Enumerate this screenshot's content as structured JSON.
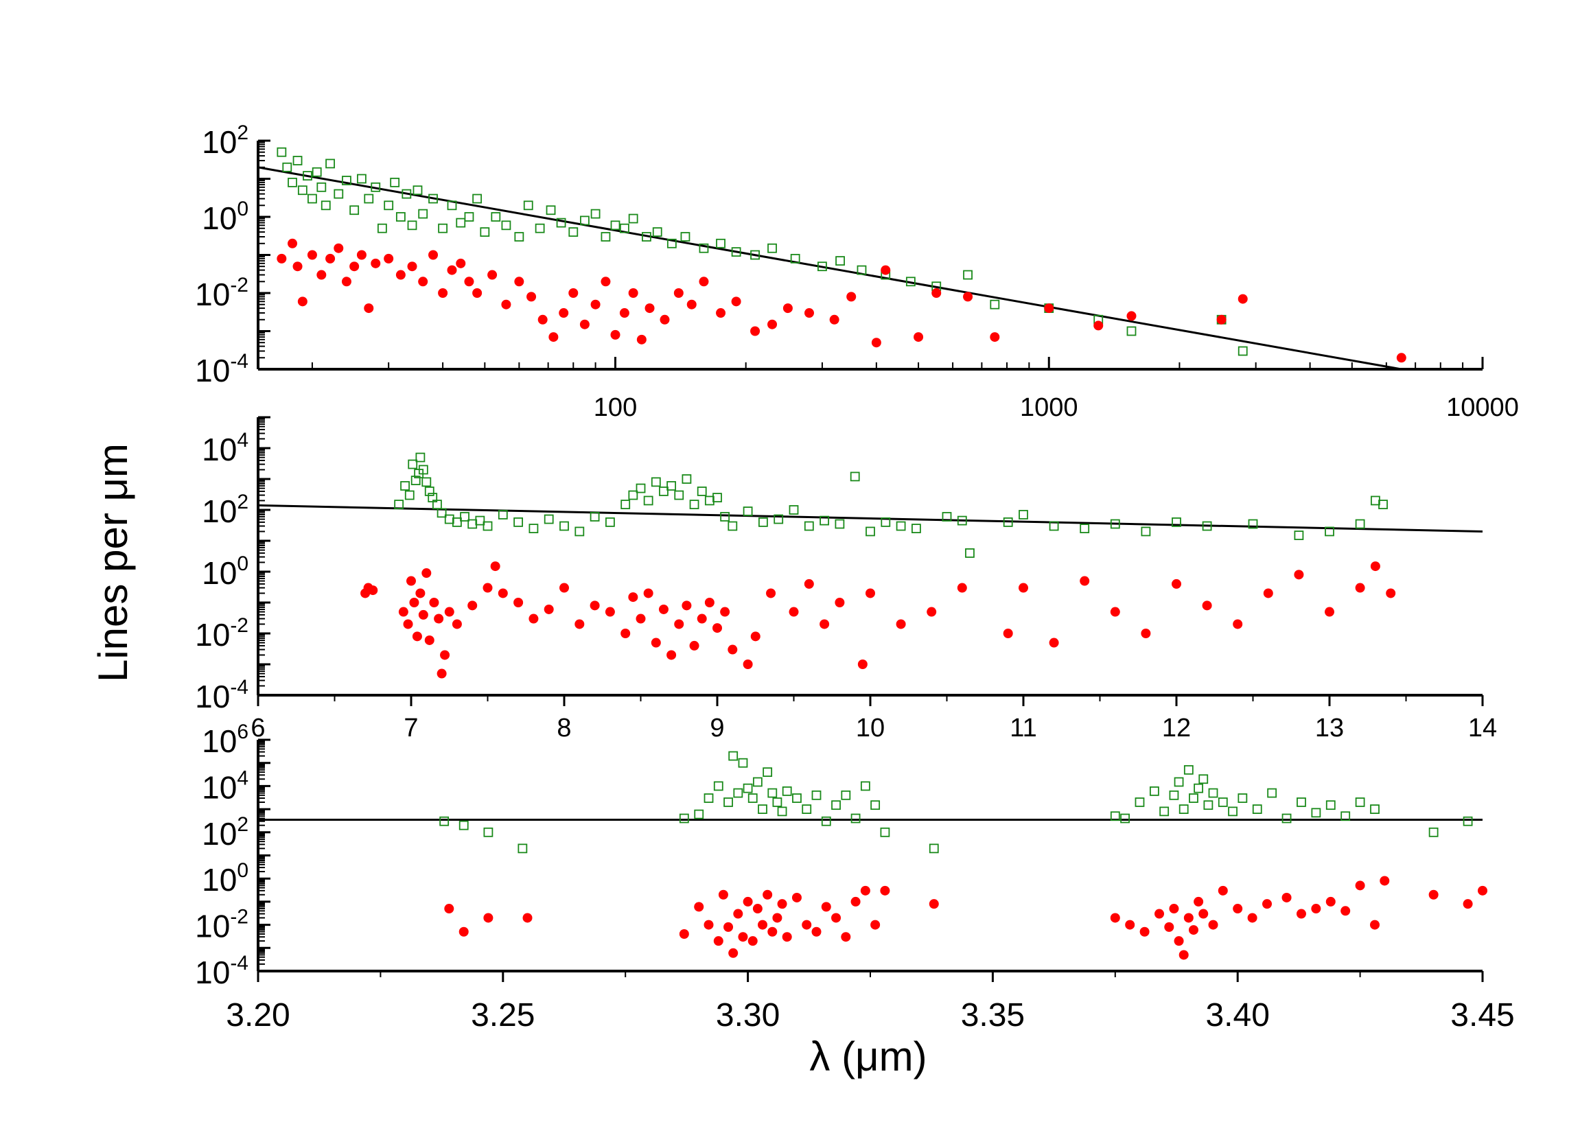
{
  "colors": {
    "green_marker": "#1a8a1a",
    "red_marker": "#ff0000",
    "axis": "#000000",
    "fit_line": "#000000"
  },
  "labels": {
    "ylabel": "Lines per μm",
    "xlabel": "λ (μm)"
  },
  "chart_data": [
    {
      "type": "scatter",
      "name": "top-panel",
      "xscale": "log",
      "yscale": "log",
      "xlim": [
        15,
        10000
      ],
      "ylim": [
        0.0001,
        100
      ],
      "x_tick_labels": [
        "100",
        "1000",
        "10000"
      ],
      "x_tick_values": [
        100,
        1000,
        10000
      ],
      "y_tick_labels": [
        {
          "base": "10",
          "exp": "-4",
          "value": 0.0001
        },
        {
          "base": "10",
          "exp": "-2",
          "value": 0.01
        },
        {
          "base": "10",
          "exp": "0",
          "value": 1
        },
        {
          "base": "10",
          "exp": "2",
          "value": 100
        }
      ],
      "fit_line": {
        "x": [
          15,
          6500
        ],
        "y": [
          20,
          0.0001
        ]
      },
      "series": [
        {
          "name": "open squares (green)",
          "marker": "square-open",
          "x": [
            17,
            17.5,
            18,
            18.5,
            19,
            19.5,
            20,
            20.5,
            21,
            21.5,
            22,
            23,
            24,
            25,
            26,
            27,
            28,
            29,
            30,
            31,
            32,
            33,
            34,
            35,
            36,
            38,
            40,
            42,
            44,
            46,
            48,
            50,
            53,
            56,
            60,
            63,
            67,
            71,
            75,
            80,
            85,
            90,
            95,
            100,
            105,
            110,
            118,
            125,
            135,
            145,
            160,
            175,
            190,
            210,
            230,
            260,
            300,
            330,
            370,
            420,
            480,
            550,
            650,
            750,
            1000,
            1300,
            1550,
            2500,
            2800
          ],
          "y": [
            50,
            20,
            8,
            30,
            5,
            12,
            3,
            15,
            6,
            2,
            25,
            4,
            9,
            1.5,
            10,
            3,
            6,
            0.5,
            2,
            8,
            1,
            4,
            0.6,
            5,
            1.2,
            3,
            0.5,
            2,
            0.7,
            1,
            3,
            0.4,
            1,
            0.6,
            0.3,
            2,
            0.5,
            1.5,
            0.7,
            0.4,
            0.8,
            1.2,
            0.3,
            0.6,
            0.5,
            0.9,
            0.3,
            0.4,
            0.2,
            0.3,
            0.15,
            0.2,
            0.12,
            0.1,
            0.15,
            0.08,
            0.05,
            0.07,
            0.04,
            0.03,
            0.02,
            0.015,
            0.03,
            0.005,
            0.004,
            0.002,
            0.001,
            0.002,
            0.0003
          ]
        },
        {
          "name": "filled circles (red)",
          "marker": "circle-filled",
          "x": [
            17,
            18,
            18.5,
            19,
            20,
            21,
            22,
            23,
            24,
            25,
            26,
            27,
            28,
            30,
            32,
            34,
            36,
            38,
            40,
            42,
            44,
            46,
            48,
            52,
            56,
            60,
            64,
            68,
            72,
            76,
            80,
            85,
            90,
            95,
            100,
            105,
            110,
            115,
            120,
            130,
            140,
            150,
            160,
            175,
            190,
            210,
            230,
            250,
            280,
            320,
            350,
            400,
            420,
            500,
            550,
            650,
            750,
            1000,
            1300,
            1550,
            2500,
            2800,
            6500
          ],
          "y": [
            0.08,
            0.2,
            0.05,
            0.006,
            0.1,
            0.03,
            0.08,
            0.15,
            0.02,
            0.05,
            0.1,
            0.004,
            0.06,
            0.08,
            0.03,
            0.05,
            0.02,
            0.1,
            0.01,
            0.04,
            0.06,
            0.02,
            0.01,
            0.03,
            0.005,
            0.02,
            0.008,
            0.002,
            0.0007,
            0.003,
            0.01,
            0.0015,
            0.005,
            0.02,
            0.0008,
            0.003,
            0.01,
            0.0006,
            0.004,
            0.002,
            0.01,
            0.005,
            0.02,
            0.003,
            0.006,
            0.001,
            0.0015,
            0.004,
            0.003,
            0.002,
            0.008,
            0.0005,
            0.04,
            0.0007,
            0.01,
            0.008,
            0.0007,
            0.004,
            0.0014,
            0.0025,
            0.002,
            0.007,
            0.0002
          ]
        }
      ]
    },
    {
      "type": "scatter",
      "name": "middle-panel",
      "xscale": "linear",
      "yscale": "log",
      "xlim": [
        6,
        14
      ],
      "ylim": [
        0.0001,
        100000
      ],
      "x_tick_labels": [
        "6",
        "7",
        "8",
        "9",
        "10",
        "11",
        "12",
        "13",
        "14"
      ],
      "x_tick_values": [
        6,
        7,
        8,
        9,
        10,
        11,
        12,
        13,
        14
      ],
      "y_tick_labels": [
        {
          "base": "10",
          "exp": "-4",
          "value": 0.0001
        },
        {
          "base": "10",
          "exp": "-2",
          "value": 0.01
        },
        {
          "base": "10",
          "exp": "0",
          "value": 1
        },
        {
          "base": "10",
          "exp": "2",
          "value": 100
        },
        {
          "base": "10",
          "exp": "4",
          "value": 10000
        }
      ],
      "fit_line": {
        "x": [
          6,
          14
        ],
        "y": [
          140,
          20
        ]
      },
      "series": [
        {
          "name": "open squares (green)",
          "marker": "square-open",
          "x": [
            6.92,
            6.96,
            6.99,
            7.01,
            7.03,
            7.05,
            7.06,
            7.08,
            7.1,
            7.12,
            7.14,
            7.17,
            7.2,
            7.25,
            7.3,
            7.35,
            7.4,
            7.45,
            7.5,
            7.6,
            7.7,
            7.8,
            7.9,
            8.0,
            8.1,
            8.2,
            8.3,
            8.4,
            8.45,
            8.5,
            8.55,
            8.6,
            8.65,
            8.7,
            8.75,
            8.8,
            8.85,
            8.9,
            8.95,
            9.0,
            9.05,
            9.1,
            9.2,
            9.3,
            9.4,
            9.5,
            9.6,
            9.7,
            9.8,
            9.9,
            10.0,
            10.1,
            10.2,
            10.3,
            10.5,
            10.6,
            10.65,
            10.9,
            11.0,
            11.2,
            11.4,
            11.6,
            11.8,
            12.0,
            12.2,
            12.5,
            12.8,
            13.0,
            13.2,
            13.3,
            13.35
          ],
          "y": [
            150,
            600,
            300,
            3000,
            900,
            1500,
            5000,
            2000,
            800,
            400,
            250,
            150,
            80,
            50,
            40,
            60,
            35,
            45,
            30,
            70,
            40,
            25,
            50,
            30,
            20,
            60,
            40,
            150,
            300,
            500,
            200,
            800,
            400,
            600,
            300,
            1000,
            150,
            400,
            200,
            250,
            60,
            30,
            90,
            40,
            50,
            100,
            30,
            45,
            35,
            1200,
            20,
            40,
            30,
            25,
            60,
            45,
            4,
            40,
            70,
            30,
            25,
            35,
            20,
            40,
            30,
            35,
            15,
            20,
            35,
            200,
            150
          ]
        },
        {
          "name": "filled circles (red)",
          "marker": "circle-filled",
          "x": [
            6.7,
            6.72,
            6.75,
            6.95,
            6.98,
            7.0,
            7.02,
            7.04,
            7.06,
            7.08,
            7.1,
            7.12,
            7.15,
            7.18,
            7.2,
            7.22,
            7.25,
            7.3,
            7.4,
            7.5,
            7.55,
            7.6,
            7.7,
            7.8,
            7.9,
            8.0,
            8.1,
            8.2,
            8.3,
            8.4,
            8.45,
            8.5,
            8.55,
            8.6,
            8.65,
            8.7,
            8.75,
            8.8,
            8.85,
            8.9,
            8.95,
            9.0,
            9.05,
            9.1,
            9.2,
            9.25,
            9.35,
            9.5,
            9.6,
            9.7,
            9.8,
            9.95,
            10.0,
            10.2,
            10.4,
            10.6,
            10.9,
            11.0,
            11.2,
            11.4,
            11.6,
            11.8,
            12.0,
            12.2,
            12.4,
            12.6,
            12.8,
            13.0,
            13.2,
            13.3,
            13.4
          ],
          "y": [
            0.2,
            0.3,
            0.25,
            0.05,
            0.02,
            0.5,
            0.1,
            0.008,
            0.2,
            0.04,
            0.9,
            0.006,
            0.1,
            0.03,
            0.0005,
            0.002,
            0.05,
            0.02,
            0.08,
            0.3,
            1.5,
            0.2,
            0.1,
            0.03,
            0.06,
            0.3,
            0.02,
            0.08,
            0.05,
            0.01,
            0.15,
            0.03,
            0.2,
            0.005,
            0.06,
            0.002,
            0.02,
            0.08,
            0.004,
            0.03,
            0.1,
            0.015,
            0.05,
            0.003,
            0.001,
            0.008,
            0.2,
            0.05,
            0.4,
            0.02,
            0.1,
            0.001,
            0.2,
            0.02,
            0.05,
            0.3,
            0.01,
            0.3,
            0.005,
            0.5,
            0.05,
            0.01,
            0.4,
            0.08,
            0.02,
            0.2,
            0.8,
            0.05,
            0.3,
            1.5,
            0.2
          ]
        }
      ]
    },
    {
      "type": "scatter",
      "name": "bottom-panel",
      "xscale": "linear",
      "yscale": "log",
      "xlim": [
        3.2,
        3.45
      ],
      "ylim": [
        0.0001,
        1000000
      ],
      "x_tick_labels": [
        "3.20",
        "3.25",
        "3.30",
        "3.35",
        "3.40",
        "3.45"
      ],
      "x_tick_values": [
        3.2,
        3.25,
        3.3,
        3.35,
        3.4,
        3.45
      ],
      "y_tick_labels": [
        {
          "base": "10",
          "exp": "-4",
          "value": 0.0001
        },
        {
          "base": "10",
          "exp": "-2",
          "value": 0.01
        },
        {
          "base": "10",
          "exp": "0",
          "value": 1
        },
        {
          "base": "10",
          "exp": "2",
          "value": 100
        },
        {
          "base": "10",
          "exp": "4",
          "value": 10000
        },
        {
          "base": "10",
          "exp": "6",
          "value": 1000000
        }
      ],
      "fit_line": {
        "x": [
          3.2,
          3.45
        ],
        "y": [
          350,
          350
        ]
      },
      "series": [
        {
          "name": "open squares (green)",
          "marker": "square-open",
          "x": [
            3.238,
            3.242,
            3.247,
            3.254,
            3.287,
            3.29,
            3.292,
            3.294,
            3.296,
            3.297,
            3.298,
            3.299,
            3.3,
            3.301,
            3.302,
            3.303,
            3.304,
            3.305,
            3.306,
            3.307,
            3.308,
            3.31,
            3.312,
            3.314,
            3.316,
            3.318,
            3.32,
            3.322,
            3.324,
            3.326,
            3.328,
            3.338,
            3.375,
            3.377,
            3.38,
            3.383,
            3.385,
            3.387,
            3.388,
            3.389,
            3.39,
            3.391,
            3.392,
            3.393,
            3.394,
            3.395,
            3.397,
            3.399,
            3.401,
            3.404,
            3.407,
            3.41,
            3.413,
            3.416,
            3.419,
            3.422,
            3.425,
            3.428,
            3.44,
            3.447
          ],
          "y": [
            300,
            200,
            100,
            20,
            400,
            600,
            3000,
            10000,
            2000,
            200000,
            5000,
            100000,
            8000,
            3000,
            15000,
            1000,
            40000,
            5000,
            2000,
            800,
            6000,
            3000,
            1000,
            4000,
            300,
            1500,
            4000,
            400,
            10000,
            1500,
            100,
            20,
            500,
            400,
            2000,
            6000,
            800,
            4000,
            15000,
            1000,
            50000,
            3000,
            8000,
            20000,
            1500,
            5000,
            2000,
            800,
            3000,
            1000,
            5000,
            400,
            2000,
            700,
            1500,
            500,
            2000,
            1000,
            100,
            300
          ]
        },
        {
          "name": "filled circles (red)",
          "marker": "circle-filled",
          "x": [
            3.239,
            3.242,
            3.247,
            3.255,
            3.287,
            3.29,
            3.292,
            3.294,
            3.295,
            3.296,
            3.297,
            3.298,
            3.299,
            3.3,
            3.301,
            3.302,
            3.303,
            3.304,
            3.305,
            3.306,
            3.307,
            3.308,
            3.31,
            3.312,
            3.314,
            3.316,
            3.318,
            3.32,
            3.322,
            3.324,
            3.326,
            3.328,
            3.338,
            3.375,
            3.378,
            3.381,
            3.384,
            3.386,
            3.387,
            3.388,
            3.389,
            3.39,
            3.391,
            3.392,
            3.393,
            3.395,
            3.397,
            3.4,
            3.403,
            3.406,
            3.41,
            3.413,
            3.416,
            3.419,
            3.422,
            3.425,
            3.428,
            3.43,
            3.44,
            3.447,
            3.45
          ],
          "y": [
            0.05,
            0.005,
            0.02,
            0.02,
            0.004,
            0.06,
            0.01,
            0.002,
            0.2,
            0.008,
            0.0006,
            0.03,
            0.003,
            0.1,
            0.002,
            0.05,
            0.01,
            0.2,
            0.005,
            0.02,
            0.08,
            0.003,
            0.15,
            0.01,
            0.005,
            0.06,
            0.02,
            0.003,
            0.1,
            0.3,
            0.01,
            0.3,
            0.08,
            0.02,
            0.01,
            0.005,
            0.03,
            0.008,
            0.05,
            0.002,
            0.0005,
            0.02,
            0.006,
            0.1,
            0.03,
            0.01,
            0.3,
            0.05,
            0.02,
            0.08,
            0.15,
            0.03,
            0.05,
            0.1,
            0.04,
            0.5,
            0.01,
            0.8,
            0.2,
            0.08,
            0.3
          ]
        }
      ]
    }
  ]
}
